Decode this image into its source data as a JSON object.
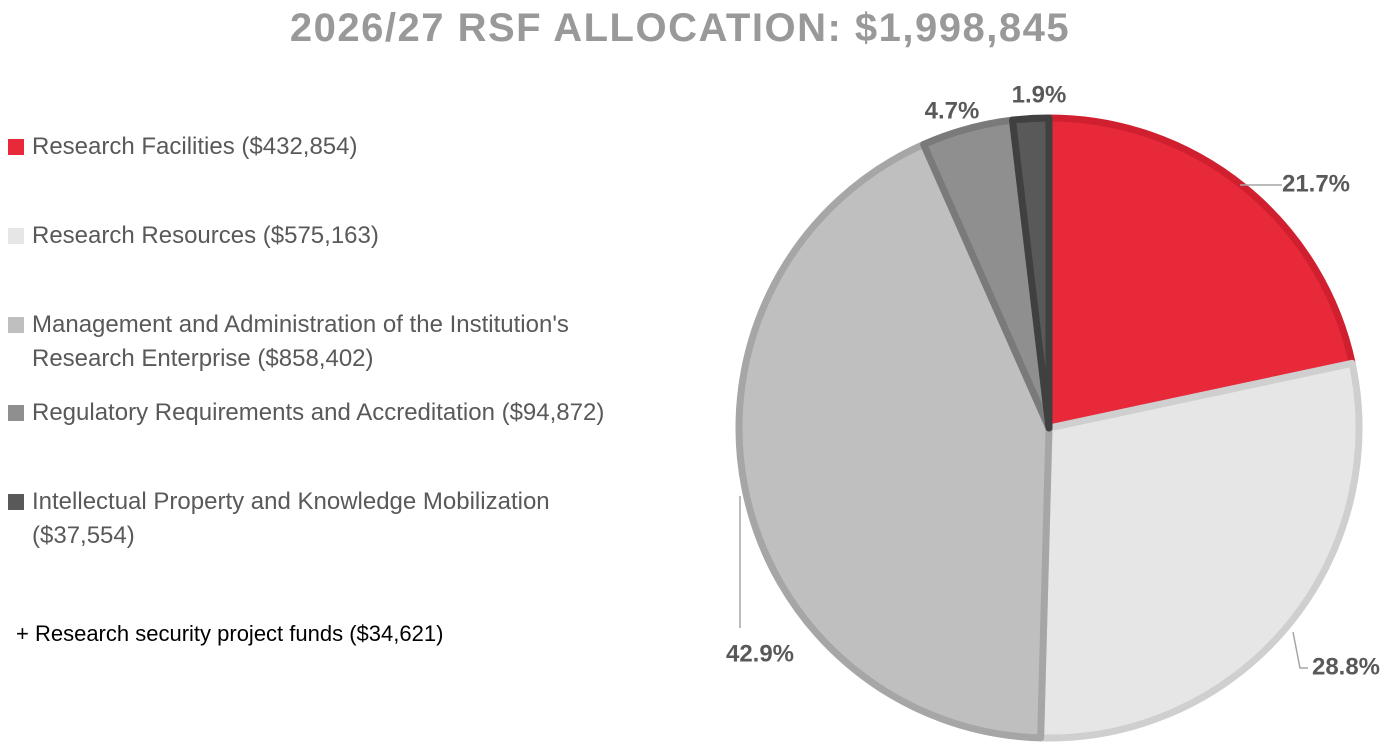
{
  "chart_data": {
    "type": "pie",
    "title": "2026/27 RSF ALLOCATION: $1,998,845",
    "legend_position": "left",
    "slices": [
      {
        "label": "Research Facilities ($432,854)",
        "value": 432854,
        "percent_label": "21.7%",
        "color": "#E8293A",
        "border": "#D0202F"
      },
      {
        "label": "Research Resources ($575,163)",
        "value": 575163,
        "percent_label": "28.8%",
        "color": "#E6E6E6",
        "border": "#CFCFCF"
      },
      {
        "label": "Management and Administration of the Institution's Research Enterprise ($858,402)",
        "value": 858402,
        "percent_label": "42.9%",
        "color": "#BFBFBF",
        "border": "#A6A6A6"
      },
      {
        "label": "Regulatory Requirements and Accreditation ($94,872)",
        "value": 94872,
        "percent_label": "4.7%",
        "color": "#8F8F8F",
        "border": "#7A7A7A"
      },
      {
        "label": "Intellectual Property and Knowledge Mobilization ($37,554)",
        "value": 37554,
        "percent_label": "1.9%",
        "color": "#595959",
        "border": "#404040"
      }
    ],
    "footnote": "+ Research security project funds ($34,621)"
  }
}
